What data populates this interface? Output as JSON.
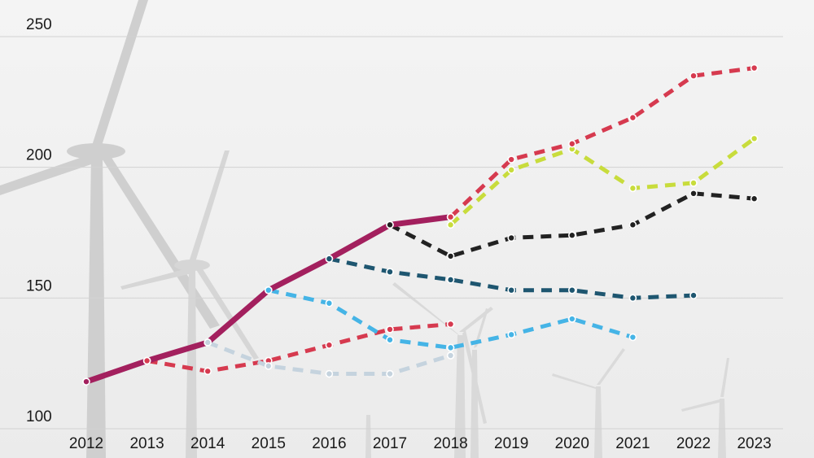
{
  "chart_data": {
    "type": "line",
    "title": "",
    "xlabel": "",
    "ylabel": "",
    "categories": [
      "2012",
      "2013",
      "2014",
      "2015",
      "2016",
      "2017",
      "2018",
      "2019",
      "2020",
      "2021",
      "2022",
      "2023"
    ],
    "ylim": [
      100,
      250
    ],
    "yticks": [
      100,
      150,
      200,
      250
    ],
    "grid": true,
    "legend": "none",
    "series": [
      {
        "color": "#a3205e",
        "style": "solid",
        "points": [
          [
            2012,
            118
          ],
          [
            2013,
            126
          ],
          [
            2014,
            133
          ],
          [
            2015,
            153
          ],
          [
            2016,
            165
          ],
          [
            2017,
            178
          ],
          [
            2018,
            181
          ]
        ]
      },
      {
        "color": "#d63a4f",
        "style": "dashed",
        "points": [
          [
            2013,
            126
          ],
          [
            2014,
            122
          ],
          [
            2015,
            126
          ],
          [
            2016,
            132
          ],
          [
            2017,
            138
          ],
          [
            2018,
            140
          ]
        ]
      },
      {
        "color": "#c5d3de",
        "style": "dashed",
        "points": [
          [
            2014,
            133
          ],
          [
            2015,
            124
          ],
          [
            2016,
            121
          ],
          [
            2017,
            121
          ],
          [
            2018,
            128
          ]
        ]
      },
      {
        "color": "#45b4e6",
        "style": "dashed",
        "points": [
          [
            2015,
            153
          ],
          [
            2016,
            148
          ],
          [
            2017,
            134
          ],
          [
            2018,
            131
          ],
          [
            2019,
            136
          ],
          [
            2020,
            142
          ],
          [
            2021,
            135
          ]
        ]
      },
      {
        "color": "#1e5670",
        "style": "dashed",
        "points": [
          [
            2016,
            165
          ],
          [
            2017,
            160
          ],
          [
            2018,
            157
          ],
          [
            2019,
            153
          ],
          [
            2020,
            153
          ],
          [
            2021,
            150
          ],
          [
            2022,
            151
          ]
        ]
      },
      {
        "color": "#222222",
        "style": "dashed",
        "points": [
          [
            2017,
            178
          ],
          [
            2018,
            166
          ],
          [
            2019,
            173
          ],
          [
            2020,
            174
          ],
          [
            2021,
            178
          ],
          [
            2022,
            190
          ],
          [
            2023,
            188
          ]
        ]
      },
      {
        "color": "#c8dc3c",
        "style": "dashed",
        "points": [
          [
            2018,
            178
          ],
          [
            2019,
            199
          ],
          [
            2020,
            207
          ],
          [
            2021,
            192
          ],
          [
            2022,
            194
          ],
          [
            2023,
            211
          ]
        ]
      },
      {
        "color": "#d63a4f",
        "style": "dashed",
        "points": [
          [
            2018,
            181
          ],
          [
            2019,
            203
          ],
          [
            2020,
            209
          ],
          [
            2021,
            219
          ],
          [
            2022,
            235
          ],
          [
            2023,
            238
          ]
        ]
      }
    ]
  }
}
